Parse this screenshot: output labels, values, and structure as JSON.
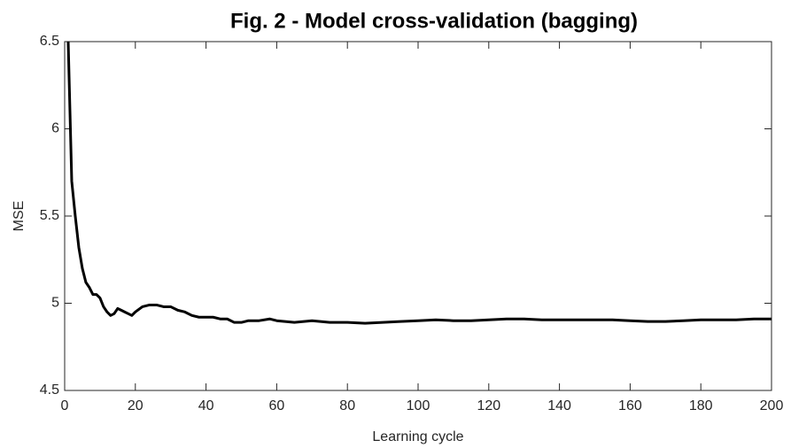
{
  "chart_data": {
    "type": "line",
    "title": "Fig. 2 - Model cross-validation (bagging)",
    "x_label": "Learning cycle",
    "y_label": "MSE",
    "xlim": [
      0,
      200
    ],
    "ylim": [
      4.5,
      6.5
    ],
    "xticks": [
      0,
      20,
      40,
      60,
      80,
      100,
      120,
      140,
      160,
      180,
      200
    ],
    "yticks": [
      4.5,
      5,
      5.5,
      6,
      6.5
    ],
    "grid": false,
    "series": [
      {
        "name": "MSE",
        "color": "#000000",
        "x": [
          1,
          2,
          3,
          4,
          5,
          6,
          7,
          8,
          9,
          10,
          11,
          12,
          13,
          14,
          15,
          16,
          17,
          18,
          19,
          20,
          22,
          24,
          26,
          28,
          30,
          32,
          34,
          36,
          38,
          40,
          42,
          44,
          46,
          48,
          50,
          52,
          55,
          58,
          60,
          65,
          70,
          75,
          80,
          85,
          90,
          95,
          100,
          105,
          110,
          115,
          120,
          125,
          130,
          135,
          140,
          145,
          150,
          155,
          160,
          165,
          170,
          175,
          180,
          185,
          190,
          195,
          200
        ],
        "values": [
          6.5,
          5.7,
          5.5,
          5.32,
          5.2,
          5.12,
          5.09,
          5.05,
          5.05,
          5.03,
          4.98,
          4.95,
          4.93,
          4.94,
          4.97,
          4.96,
          4.95,
          4.94,
          4.93,
          4.95,
          4.98,
          4.99,
          4.99,
          4.98,
          4.98,
          4.96,
          4.95,
          4.93,
          4.92,
          4.92,
          4.92,
          4.91,
          4.91,
          4.89,
          4.89,
          4.9,
          4.9,
          4.91,
          4.9,
          4.89,
          4.9,
          4.89,
          4.89,
          4.885,
          4.89,
          4.895,
          4.9,
          4.905,
          4.9,
          4.9,
          4.905,
          4.91,
          4.91,
          4.905,
          4.905,
          4.905,
          4.905,
          4.905,
          4.9,
          4.895,
          4.895,
          4.9,
          4.905,
          4.905,
          4.905,
          4.91,
          4.91
        ]
      }
    ]
  }
}
